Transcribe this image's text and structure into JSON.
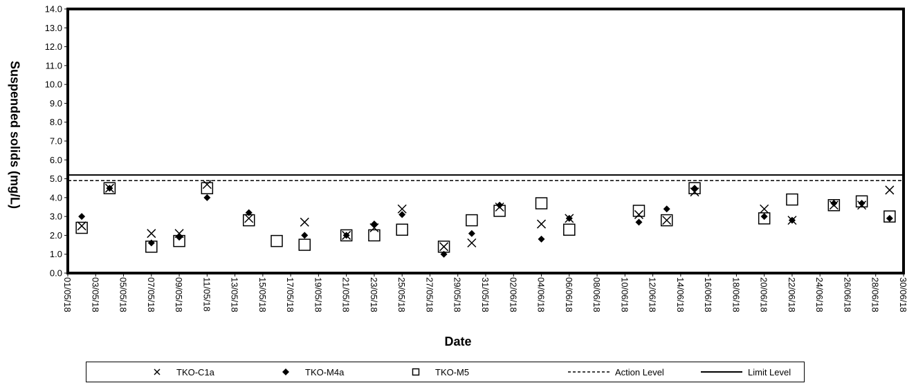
{
  "chart_data": {
    "type": "scatter",
    "ylabel": "Suspended solids (mg/L)",
    "xlabel": "Date",
    "ylim": [
      0,
      14
    ],
    "yticks": [
      "0.0",
      "1.0",
      "2.0",
      "3.0",
      "4.0",
      "5.0",
      "6.0",
      "7.0",
      "8.0",
      "9.0",
      "10.0",
      "11.0",
      "12.0",
      "13.0",
      "14.0"
    ],
    "xlim": [
      "01/05/18",
      "30/06/18"
    ],
    "xticks": [
      "01/05/18",
      "03/05/18",
      "05/05/18",
      "07/05/18",
      "09/05/18",
      "11/05/18",
      "13/05/18",
      "15/05/18",
      "17/05/18",
      "19/05/18",
      "21/05/18",
      "23/05/18",
      "25/05/18",
      "27/05/18",
      "29/05/18",
      "31/05/18",
      "02/06/18",
      "04/06/18",
      "06/06/18",
      "08/06/18",
      "10/06/18",
      "12/06/18",
      "14/06/18",
      "16/06/18",
      "18/06/18",
      "20/06/18",
      "22/06/18",
      "24/06/18",
      "26/06/18",
      "28/06/18",
      "30/06/18"
    ],
    "series": [
      {
        "name": "TKO-C1a",
        "marker": "x",
        "x": [
          "02/05/18",
          "04/05/18",
          "07/05/18",
          "09/05/18",
          "11/05/18",
          "14/05/18",
          "18/05/18",
          "21/05/18",
          "23/05/18",
          "25/05/18",
          "28/05/18",
          "30/05/18",
          "01/06/18",
          "04/06/18",
          "06/06/18",
          "11/06/18",
          "13/06/18",
          "15/06/18",
          "20/06/18",
          "22/06/18",
          "25/06/18",
          "27/06/18",
          "29/06/18"
        ],
        "y": [
          2.5,
          4.5,
          2.1,
          2.1,
          4.7,
          2.9,
          2.7,
          2.0,
          2.4,
          3.4,
          1.4,
          1.6,
          3.5,
          2.6,
          2.9,
          3.1,
          2.8,
          4.3,
          3.4,
          2.8,
          3.6,
          3.6,
          4.4
        ]
      },
      {
        "name": "TKO-M4a",
        "marker": "diamond",
        "x": [
          "02/05/18",
          "04/05/18",
          "07/05/18",
          "09/05/18",
          "11/05/18",
          "14/05/18",
          "18/05/18",
          "21/05/18",
          "23/05/18",
          "25/05/18",
          "28/05/18",
          "30/05/18",
          "01/06/18",
          "04/06/18",
          "06/06/18",
          "11/06/18",
          "13/06/18",
          "15/06/18",
          "20/06/18",
          "22/06/18",
          "25/06/18",
          "27/06/18",
          "29/06/18"
        ],
        "y": [
          3.0,
          4.5,
          1.6,
          1.9,
          4.0,
          3.2,
          2.0,
          2.0,
          2.6,
          3.1,
          1.0,
          2.1,
          3.6,
          1.8,
          2.9,
          2.7,
          3.4,
          4.5,
          3.0,
          2.8,
          3.7,
          3.7,
          2.9
        ]
      },
      {
        "name": "TKO-M5",
        "marker": "square",
        "x": [
          "02/05/18",
          "04/05/18",
          "07/05/18",
          "09/05/18",
          "11/05/18",
          "14/05/18",
          "16/05/18",
          "18/05/18",
          "21/05/18",
          "23/05/18",
          "25/05/18",
          "28/05/18",
          "30/05/18",
          "01/06/18",
          "04/06/18",
          "06/06/18",
          "11/06/18",
          "13/06/18",
          "15/06/18",
          "20/06/18",
          "22/06/18",
          "25/06/18",
          "27/06/18",
          "29/06/18"
        ],
        "y": [
          2.4,
          4.5,
          1.4,
          1.7,
          4.5,
          2.8,
          1.7,
          1.5,
          2.0,
          2.0,
          2.3,
          1.4,
          2.8,
          3.3,
          3.7,
          2.3,
          3.3,
          2.8,
          4.5,
          2.9,
          3.9,
          3.6,
          3.8,
          3.0
        ]
      }
    ],
    "lines": [
      {
        "name": "Action Level",
        "y": 4.9,
        "style": "dashed"
      },
      {
        "name": "Limit Level",
        "y": 5.2,
        "style": "solid"
      }
    ],
    "legend": [
      "TKO-C1a",
      "TKO-M4a",
      "TKO-M5",
      "Action Level",
      "Limit Level"
    ],
    "legend_position": "bottom",
    "grid": false
  }
}
